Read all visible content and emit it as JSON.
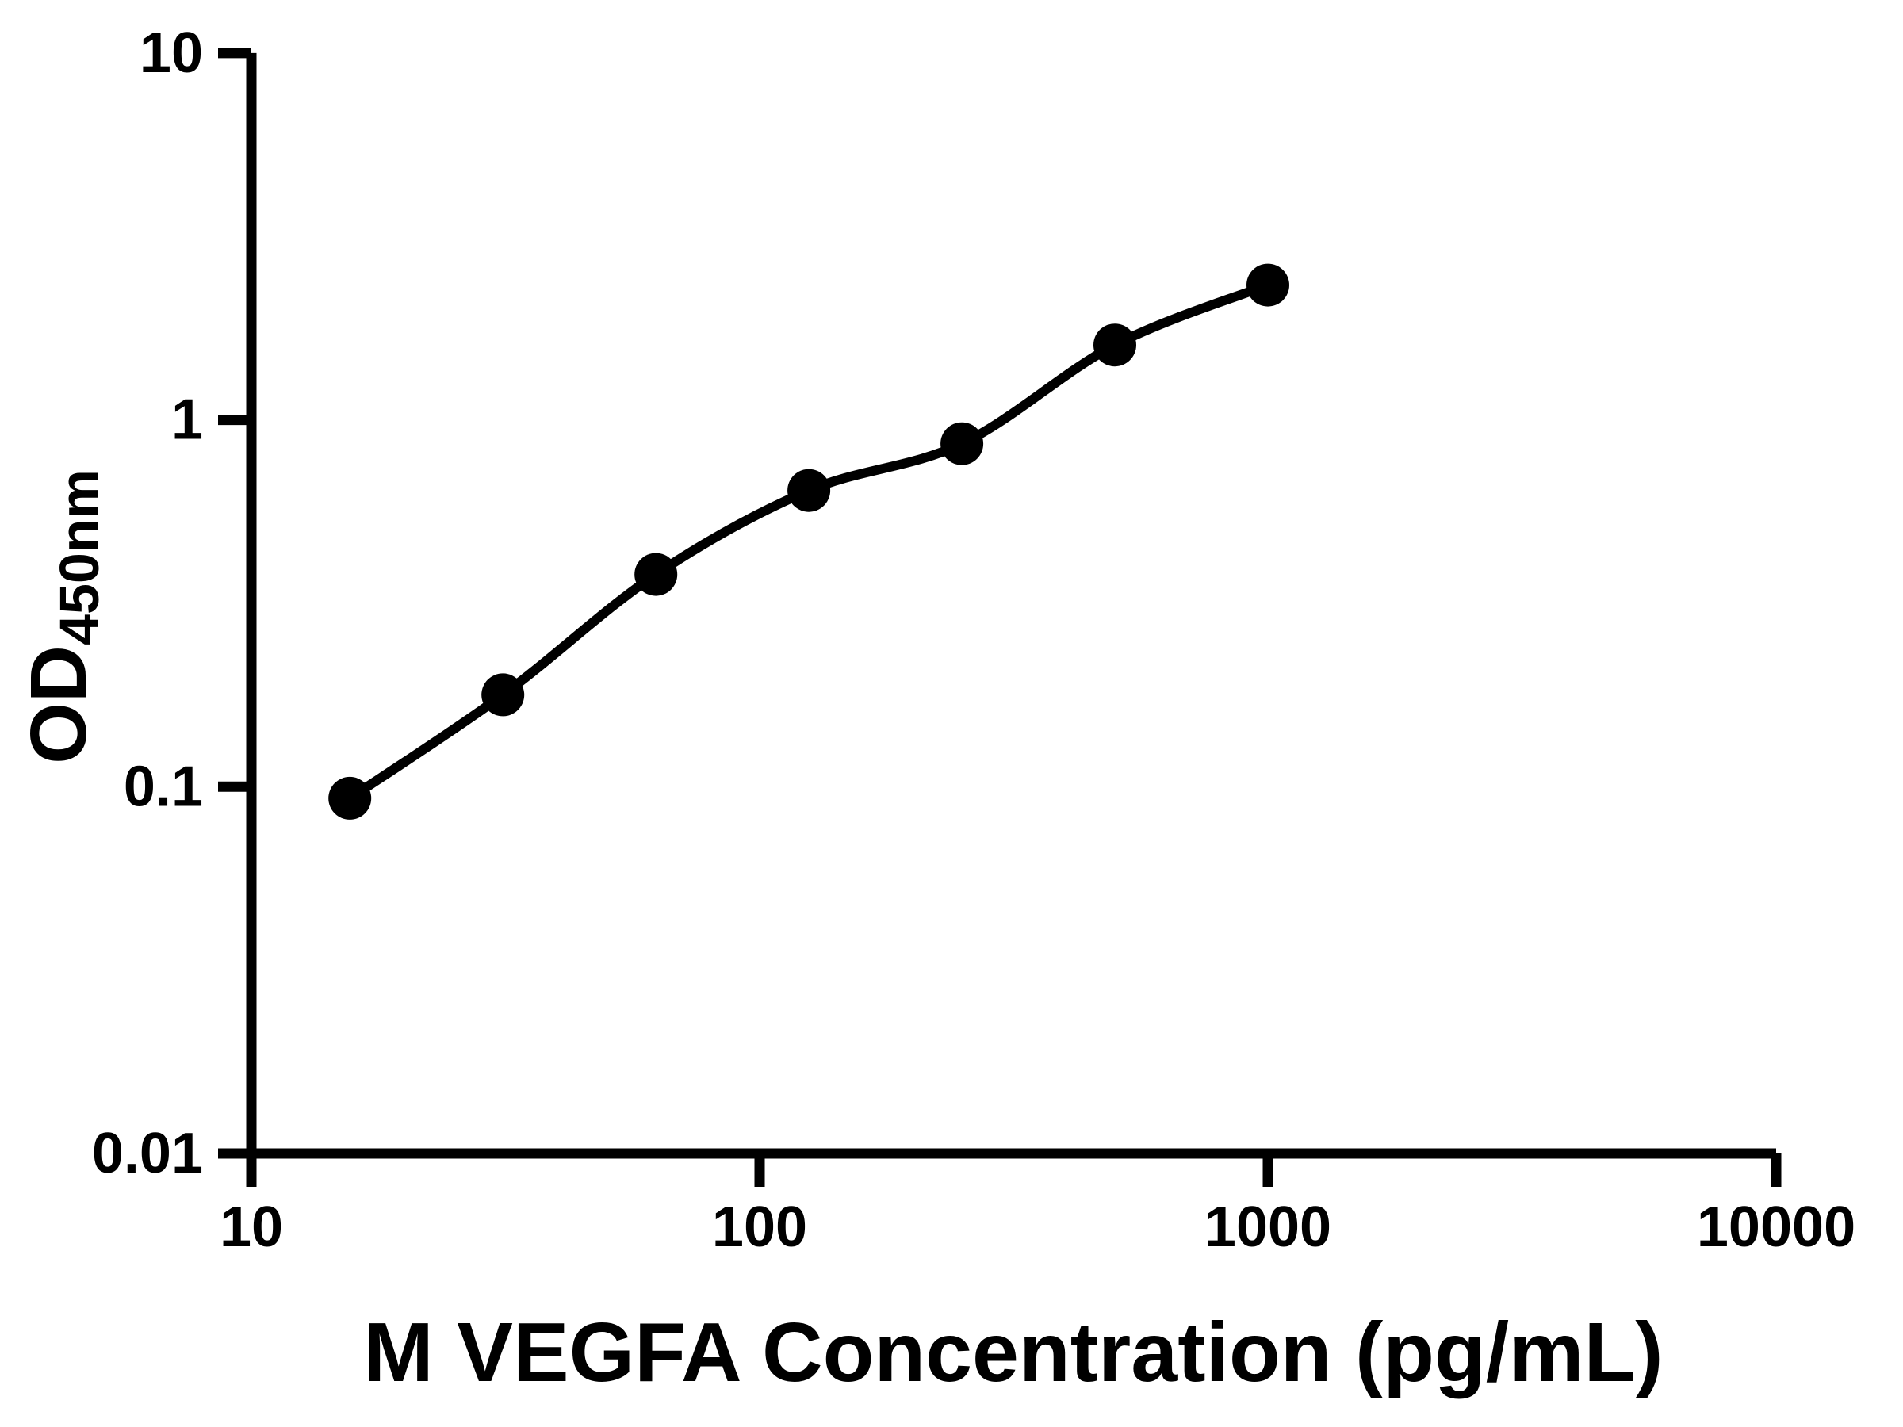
{
  "chart_data": {
    "type": "scatter",
    "subtype": "elisa-standard-curve-with-fit-line",
    "title": "",
    "xlabel": "M VEGFA Concentration (pg/mL)",
    "ylabel_main": "OD",
    "ylabel_sub": "450nm",
    "x_scale": "log10",
    "y_scale": "log10",
    "xlim": [
      10,
      10000
    ],
    "ylim": [
      0.01,
      10
    ],
    "x_ticks": [
      10,
      100,
      1000,
      10000
    ],
    "x_tick_labels": [
      "10",
      "100",
      "1000",
      "10000"
    ],
    "y_ticks": [
      0.01,
      0.1,
      1,
      10
    ],
    "y_tick_labels": [
      "0.01",
      "0.1",
      "1",
      "10"
    ],
    "grid": false,
    "legend": null,
    "series": [
      {
        "name": "standard-curve",
        "marker": "filled-circle",
        "line": "smooth",
        "x": [
          15.625,
          31.25,
          62.5,
          125,
          250,
          500,
          1000
        ],
        "y": [
          0.093,
          0.178,
          0.379,
          0.642,
          0.861,
          1.6,
          2.33
        ]
      }
    ],
    "colors": {
      "foreground": "#000000",
      "background": "#ffffff",
      "marker": "#000000",
      "line": "#000000"
    }
  }
}
